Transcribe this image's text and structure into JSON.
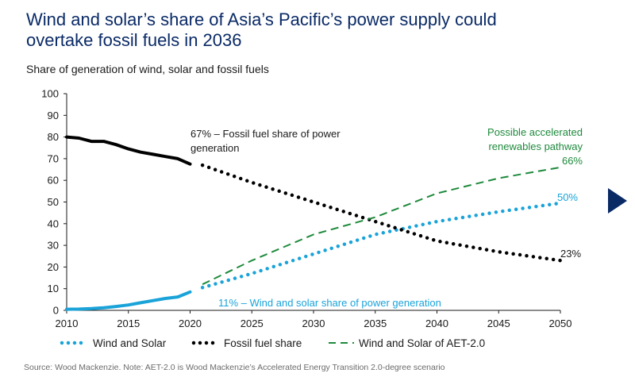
{
  "header": {
    "title_line1": "Wind and solar’s share of Asia’s Pacific’s power supply could",
    "title_line2": "overtake fossil fuels in 2036",
    "subtitle": "Share of generation of wind, solar and fossil fuels"
  },
  "footer": {
    "source": "Source: Wood Mackenzie. Note: AET-2.0 is Wood Mackenzie’s Accelerated Energy Transition 2.0-degree scenario"
  },
  "colors": {
    "title": "#0a2a66",
    "wind_solar": "#1aa3d9",
    "fossil": "#000000",
    "aet": "#1e8a3c",
    "arrow": "#0a2a66"
  },
  "icons": {
    "nav": "right-triangle-arrow-icon"
  },
  "chart_data": {
    "type": "line",
    "title": "",
    "xlabel": "",
    "ylabel": "",
    "xlim": [
      2010,
      2050
    ],
    "ylim": [
      0,
      100
    ],
    "x_ticks": [
      2010,
      2015,
      2020,
      2025,
      2030,
      2035,
      2040,
      2045,
      2050
    ],
    "y_ticks": [
      0,
      10,
      20,
      30,
      40,
      50,
      60,
      70,
      80,
      90,
      100
    ],
    "grid": false,
    "legend_position": "bottom",
    "series": [
      {
        "name": "Wind and Solar",
        "color": "#1aa3d9",
        "historical": {
          "x": [
            2010,
            2011,
            2012,
            2013,
            2014,
            2015,
            2016,
            2017,
            2018,
            2019,
            2020
          ],
          "y": [
            0.5,
            0.6,
            0.8,
            1.2,
            1.8,
            2.5,
            3.5,
            4.5,
            5.5,
            6.2,
            8.5
          ]
        },
        "forecast": {
          "x": [
            2021,
            2025,
            2030,
            2035,
            2040,
            2045,
            2050
          ],
          "y": [
            10.5,
            17,
            26,
            35,
            41,
            45.5,
            49.5
          ]
        }
      },
      {
        "name": "Fossil fuel share",
        "color": "#000000",
        "historical": {
          "x": [
            2010,
            2011,
            2012,
            2013,
            2014,
            2015,
            2016,
            2017,
            2018,
            2019,
            2020
          ],
          "y": [
            80,
            79.5,
            78,
            78,
            76.5,
            74.5,
            73,
            72,
            71,
            70,
            67.5
          ]
        },
        "forecast": {
          "x": [
            2021,
            2025,
            2030,
            2035,
            2040,
            2045,
            2050
          ],
          "y": [
            67,
            59,
            50,
            41,
            32,
            27,
            23
          ]
        }
      },
      {
        "name": "Wind and Solar of AET-2.0",
        "color": "#1e8a3c",
        "forecast": {
          "x": [
            2021,
            2025,
            2030,
            2035,
            2040,
            2045,
            2050
          ],
          "y": [
            12,
            23,
            35,
            43,
            54,
            61,
            66
          ]
        }
      }
    ],
    "annotations": [
      {
        "text_line1": "67% – Fossil fuel share of power",
        "text_line2": "generation",
        "color": "#1a1a1a"
      },
      {
        "text": "11% – Wind and solar share of power generation",
        "color": "#1aa3d9"
      },
      {
        "text_line1": "Possible accelerated",
        "text_line2": "renewables pathway",
        "color": "#1e8a3c"
      },
      {
        "text": "66%",
        "color": "#1e8a3c"
      },
      {
        "text": "50%",
        "color": "#1aa3d9"
      },
      {
        "text": "23%",
        "color": "#1a1a1a"
      }
    ]
  }
}
